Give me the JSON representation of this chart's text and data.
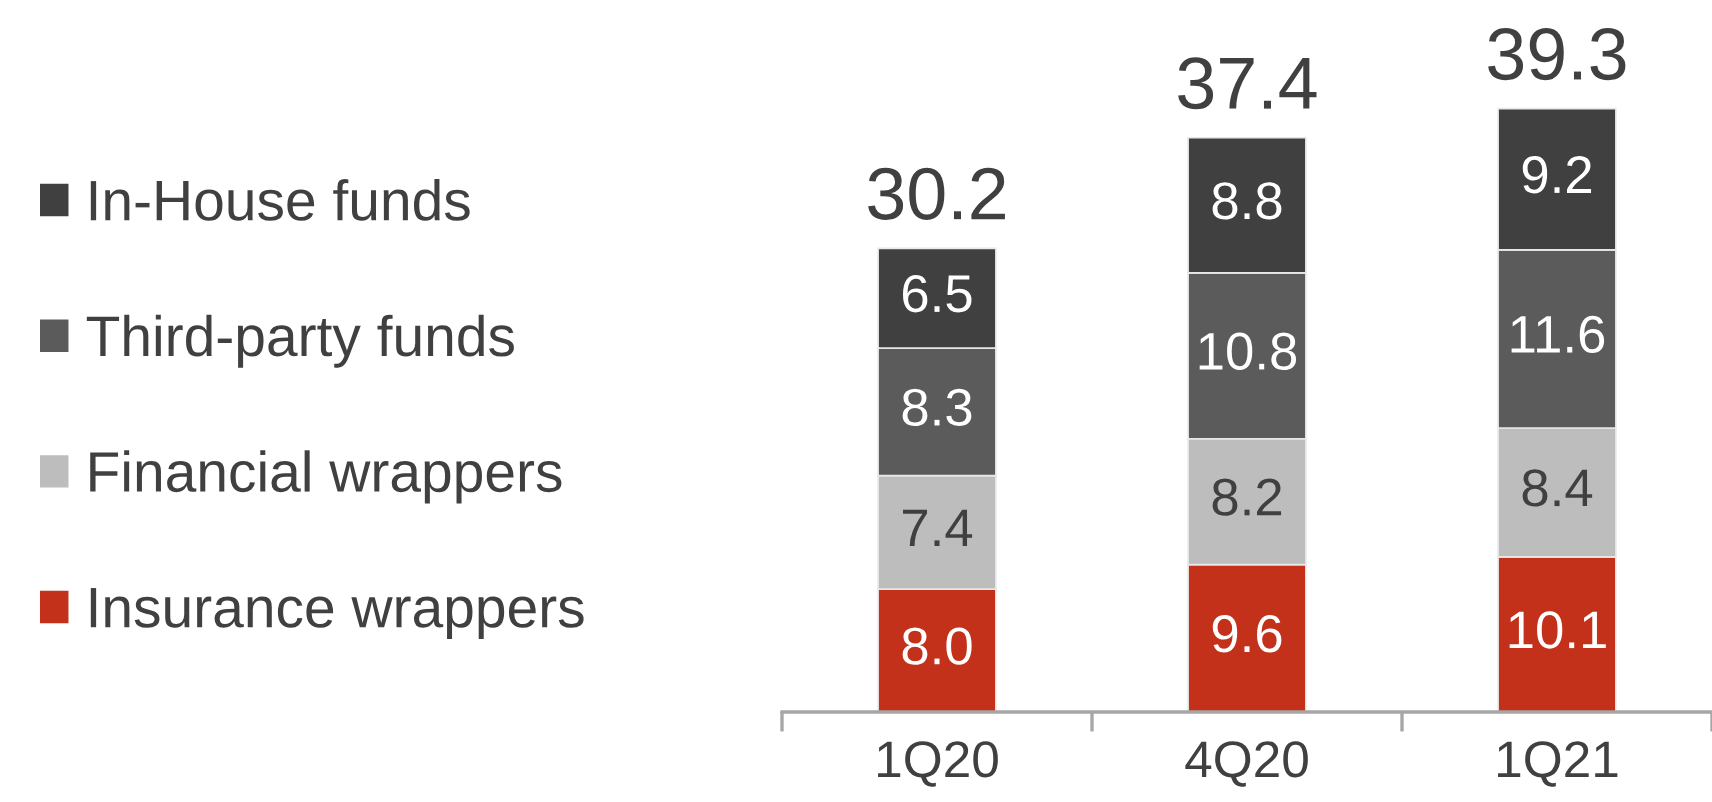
{
  "chart_data": {
    "type": "bar",
    "stacked": true,
    "categories": [
      "1Q20",
      "4Q20",
      "1Q21"
    ],
    "series": [
      {
        "name": "Insurance wrappers",
        "color": "#c4311a",
        "values": [
          8.0,
          9.6,
          10.1
        ],
        "value_labels": [
          "8.0",
          "9.6",
          "10.1"
        ]
      },
      {
        "name": "Financial wrappers",
        "color": "#bdbdbd",
        "values": [
          7.4,
          8.2,
          8.4
        ],
        "value_labels": [
          "7.4",
          "8.2",
          "8.4"
        ]
      },
      {
        "name": "Third-party funds",
        "color": "#5b5b5b",
        "values": [
          8.3,
          10.8,
          11.6
        ],
        "value_labels": [
          "8.3",
          "10.8",
          "11.6"
        ]
      },
      {
        "name": "In-House funds",
        "color": "#404040",
        "values": [
          6.5,
          8.8,
          9.2
        ],
        "value_labels": [
          "6.5",
          "8.8",
          "9.2"
        ]
      }
    ],
    "totals": [
      "30.2",
      "37.4",
      "39.3"
    ],
    "legend": "left"
  }
}
